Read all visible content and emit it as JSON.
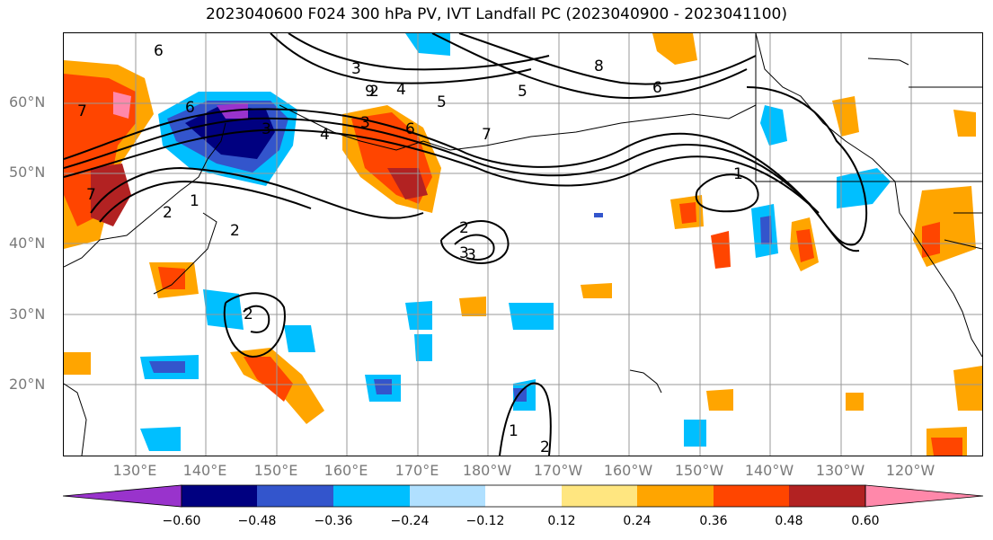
{
  "title": "2023040600 F024 300 hPa PV, IVT Landfall PC (2023040900 - 2023041100)",
  "lat_labels": [
    "60°N",
    "50°N",
    "40°N",
    "30°N",
    "20°N"
  ],
  "lon_labels": [
    "130°E",
    "140°E",
    "150°E",
    "160°E",
    "170°E",
    "180°W",
    "170°W",
    "160°W",
    "150°W",
    "140°W",
    "130°W",
    "120°W"
  ],
  "colorbar": {
    "colors": [
      "#9933cc",
      "#000080",
      "#3355cc",
      "#00bfff",
      "#b0e0ff",
      "#ffffff",
      "#ffe680",
      "#ffa500",
      "#ff4500",
      "#b22222",
      "#ff88aa"
    ],
    "ticks": [
      "−0.60",
      "−0.48",
      "−0.36",
      "−0.24",
      "−0.12",
      "0.12",
      "0.24",
      "0.36",
      "0.48",
      "0.60"
    ]
  },
  "contour_labels": [
    "6",
    "3",
    "2",
    "3",
    "8",
    "6",
    "7",
    "5",
    "4",
    "9",
    "7",
    "6",
    "5",
    "4",
    "3",
    "2",
    "1",
    "1",
    "2",
    "3",
    "2",
    "1",
    "2",
    "7",
    "6",
    "3",
    "2"
  ]
}
